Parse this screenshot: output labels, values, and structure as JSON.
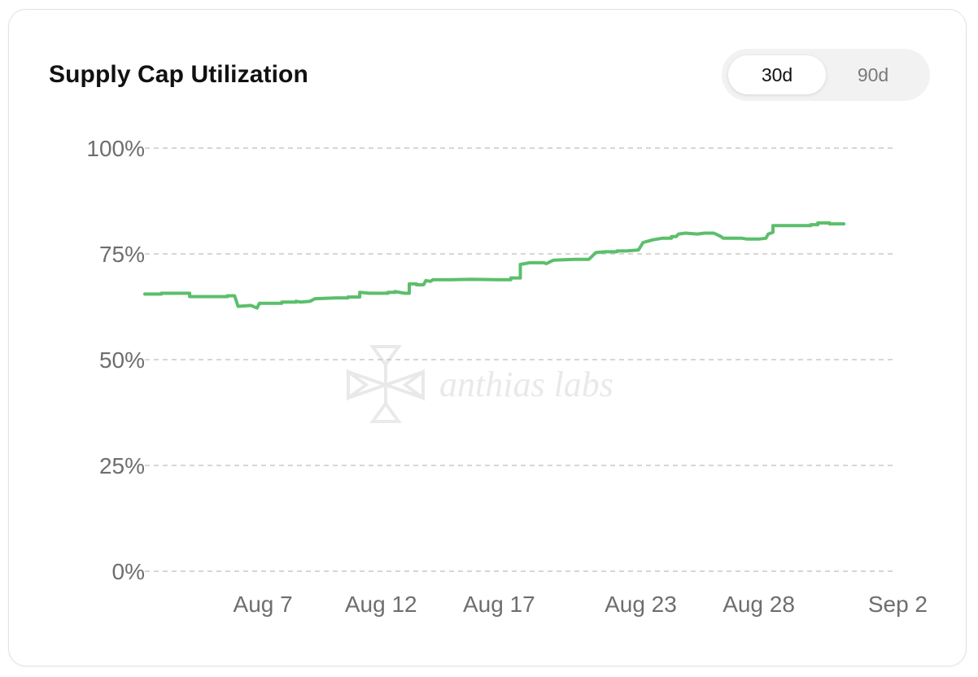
{
  "header": {
    "title": "Supply Cap Utilization",
    "range_options": [
      "30d",
      "90d"
    ],
    "selected_range": "30d"
  },
  "watermark": {
    "text": "anthias labs"
  },
  "colors": {
    "line": "#5bbf6b",
    "grid": "#c9c9c9",
    "text": "#6e6e6e"
  },
  "chart_data": {
    "type": "line",
    "title": "Supply Cap Utilization",
    "xlabel": "",
    "ylabel": "",
    "x_tick_labels": [
      "Aug 7",
      "Aug 12",
      "Aug 17",
      "Aug 23",
      "Aug 28",
      "Sep 2"
    ],
    "x_tick_days": [
      5,
      10,
      15,
      21,
      26,
      31
    ],
    "y_tick_labels": [
      "0%",
      "25%",
      "50%",
      "75%",
      "100%"
    ],
    "y_ticks": [
      0,
      25,
      50,
      75,
      100
    ],
    "ylim": [
      0,
      100
    ],
    "grid": true,
    "series": [
      {
        "color": "#5bbf6b",
        "points": [
          [
            0.0,
            65.5
          ],
          [
            0.7,
            65.5
          ],
          [
            0.7,
            65.7
          ],
          [
            1.9,
            65.7
          ],
          [
            1.9,
            64.9
          ],
          [
            3.5,
            64.9
          ],
          [
            3.5,
            65.1
          ],
          [
            3.8,
            65.1
          ],
          [
            3.95,
            62.6
          ],
          [
            4.5,
            62.8
          ],
          [
            4.75,
            62.2
          ],
          [
            4.85,
            63.3
          ],
          [
            5.8,
            63.3
          ],
          [
            5.8,
            63.6
          ],
          [
            6.4,
            63.6
          ],
          [
            6.4,
            63.8
          ],
          [
            6.6,
            63.6
          ],
          [
            7.0,
            63.8
          ],
          [
            7.2,
            64.4
          ],
          [
            8.1,
            64.6
          ],
          [
            8.6,
            64.6
          ],
          [
            8.6,
            64.8
          ],
          [
            9.1,
            64.8
          ],
          [
            9.1,
            65.9
          ],
          [
            9.5,
            65.7
          ],
          [
            10.3,
            65.7
          ],
          [
            10.3,
            65.9
          ],
          [
            10.6,
            65.9
          ],
          [
            10.6,
            66.1
          ],
          [
            11.0,
            65.7
          ],
          [
            11.2,
            65.7
          ],
          [
            11.2,
            67.9
          ],
          [
            11.5,
            67.9
          ],
          [
            11.5,
            67.7
          ],
          [
            11.8,
            67.7
          ],
          [
            11.9,
            68.7
          ],
          [
            12.1,
            68.5
          ],
          [
            12.2,
            68.9
          ],
          [
            13.0,
            68.9
          ],
          [
            13.8,
            69.0
          ],
          [
            15.0,
            68.9
          ],
          [
            15.5,
            68.9
          ],
          [
            15.5,
            69.3
          ],
          [
            15.9,
            69.3
          ],
          [
            15.9,
            72.5
          ],
          [
            16.3,
            72.9
          ],
          [
            16.9,
            72.9
          ],
          [
            17.0,
            72.7
          ],
          [
            17.3,
            73.5
          ],
          [
            18.2,
            73.7
          ],
          [
            18.8,
            73.7
          ],
          [
            19.1,
            75.3
          ],
          [
            19.5,
            75.5
          ],
          [
            20.0,
            75.5
          ],
          [
            20.0,
            75.7
          ],
          [
            20.4,
            75.7
          ],
          [
            20.9,
            75.9
          ],
          [
            21.1,
            77.7
          ],
          [
            21.5,
            78.3
          ],
          [
            21.9,
            78.7
          ],
          [
            22.3,
            78.7
          ],
          [
            22.3,
            79.1
          ],
          [
            22.5,
            79.1
          ],
          [
            22.6,
            79.7
          ],
          [
            22.9,
            79.9
          ],
          [
            23.4,
            79.7
          ],
          [
            23.7,
            79.9
          ],
          [
            24.1,
            79.9
          ],
          [
            24.4,
            79.1
          ],
          [
            24.5,
            78.7
          ],
          [
            25.3,
            78.7
          ],
          [
            25.5,
            78.5
          ],
          [
            26.0,
            78.5
          ],
          [
            26.3,
            78.7
          ],
          [
            26.4,
            79.7
          ],
          [
            26.6,
            80.1
          ],
          [
            26.6,
            81.7
          ],
          [
            28.2,
            81.7
          ],
          [
            28.2,
            81.9
          ],
          [
            28.5,
            81.9
          ],
          [
            28.5,
            82.3
          ],
          [
            29.0,
            82.3
          ],
          [
            29.0,
            82.1
          ],
          [
            29.6,
            82.1
          ]
        ]
      }
    ]
  }
}
